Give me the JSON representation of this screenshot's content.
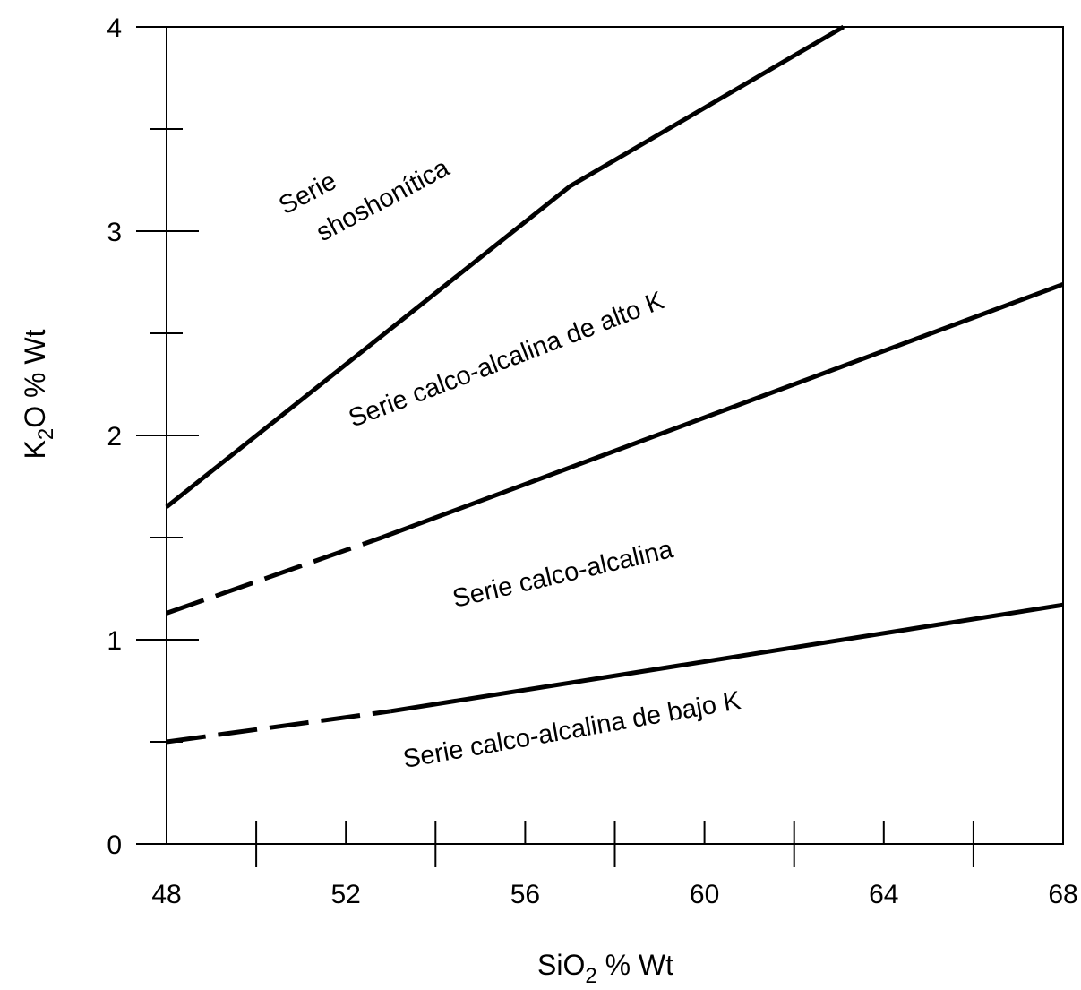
{
  "chart_data": {
    "type": "line",
    "xlabel": {
      "pre": "SiO",
      "sub": "2",
      "post": " % Wt"
    },
    "ylabel": {
      "pre": "K",
      "sub": "2",
      "post": "O  % Wt"
    },
    "xlim": [
      48,
      68
    ],
    "ylim": [
      0,
      4
    ],
    "x_major_ticks": [
      48,
      52,
      56,
      60,
      64,
      68
    ],
    "x_minor_ticks": [
      50,
      54,
      58,
      62,
      66
    ],
    "y_major_ticks": [
      0,
      1,
      2,
      3,
      4
    ],
    "y_minor_ticks": [
      0.5,
      1.5,
      2.5,
      3.5
    ],
    "x_tick_labels": [
      "48",
      "52",
      "56",
      "60",
      "64",
      "68"
    ],
    "y_tick_labels": [
      "0",
      "1",
      "2",
      "3",
      "4"
    ],
    "grid": false,
    "series": [
      {
        "style": "solid",
        "points": [
          [
            48,
            1.65
          ],
          [
            57,
            3.22
          ],
          [
            63.1,
            4.0
          ]
        ]
      },
      {
        "style": "dashed",
        "points": [
          [
            48,
            1.13
          ],
          [
            52.8,
            1.5
          ]
        ]
      },
      {
        "style": "solid",
        "points": [
          [
            52.8,
            1.5
          ],
          [
            68,
            2.74
          ]
        ]
      },
      {
        "style": "dashed",
        "points": [
          [
            48,
            0.5
          ],
          [
            53,
            0.65
          ]
        ]
      },
      {
        "style": "solid",
        "points": [
          [
            53,
            0.65
          ],
          [
            68,
            1.17
          ]
        ]
      }
    ],
    "region_labels": [
      {
        "lines": [
          "Serie",
          "shoshonítica"
        ]
      },
      {
        "lines": [
          "Serie calco-alcalina de alto K"
        ]
      },
      {
        "lines": [
          "Serie calco-alcalina"
        ]
      },
      {
        "lines": [
          "Serie calco-alcalina de bajo K"
        ]
      }
    ]
  }
}
